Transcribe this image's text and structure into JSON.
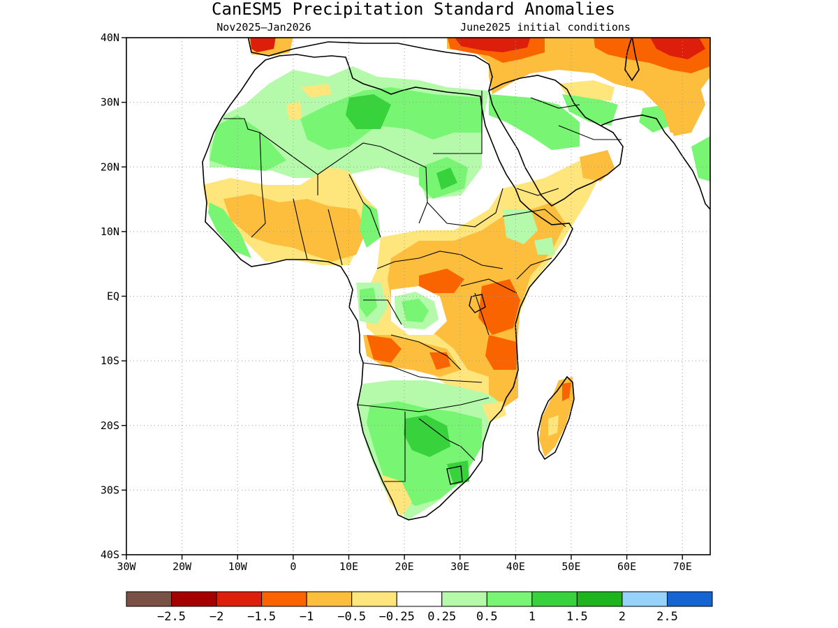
{
  "title": "CanESM5 Precipitation Standard Anomalies",
  "subtitle_left": "Nov2025–Jan2026",
  "subtitle_right": "June2025 initial conditions",
  "lat_ticks": [
    "40N",
    "30N",
    "20N",
    "10N",
    "EQ",
    "10S",
    "20S",
    "30S",
    "40S"
  ],
  "lon_ticks": [
    "30W",
    "20W",
    "10W",
    "0",
    "10E",
    "20E",
    "30E",
    "40E",
    "50E",
    "60E",
    "70E"
  ],
  "colorbar": {
    "colors": [
      "#7a5245",
      "#a50000",
      "#dc1e0a",
      "#fa6400",
      "#fcbe3c",
      "#fee67c",
      "#ffffff",
      "#b4faaa",
      "#78f573",
      "#37d23c",
      "#1eb41e",
      "#96d2fa",
      "#1464d2"
    ],
    "labels": [
      "−2.5",
      "−2",
      "−1.5",
      "−1",
      "−0.5",
      "−0.25",
      "0.25",
      "0.5",
      "1",
      "1.5",
      "2",
      "2.5"
    ]
  }
}
